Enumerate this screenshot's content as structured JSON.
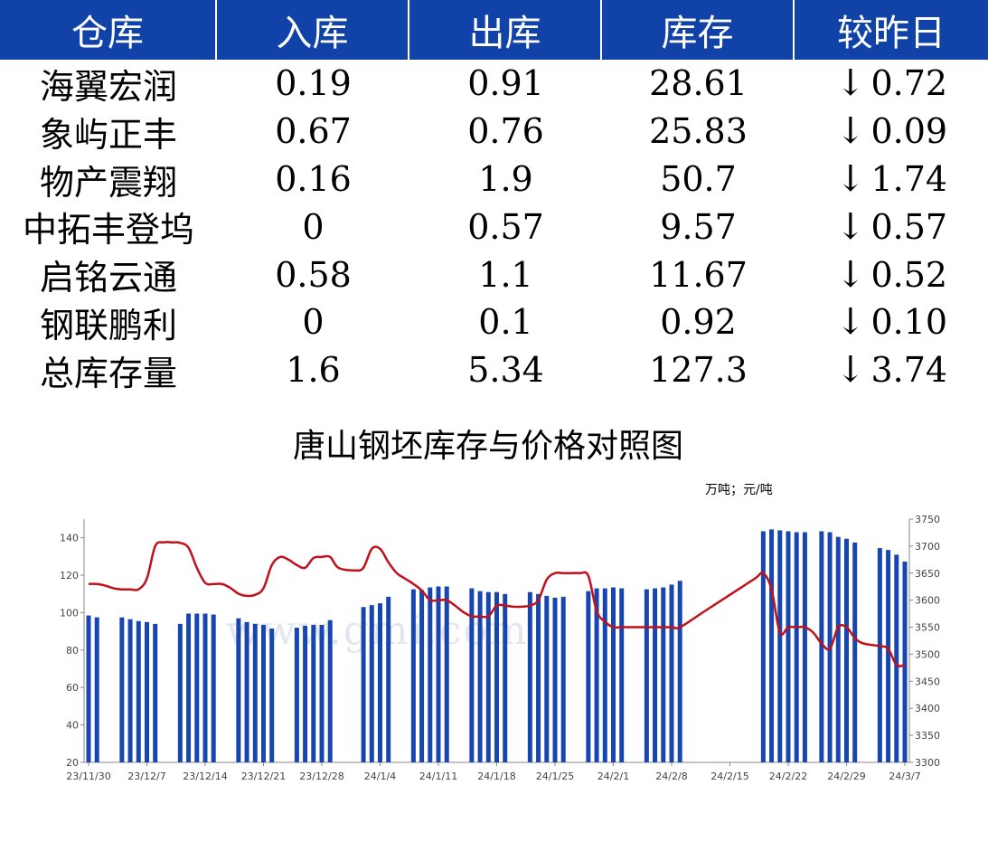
{
  "table": {
    "headers": [
      "仓库",
      "入库",
      "出库",
      "库存",
      "较昨日"
    ],
    "rows": [
      {
        "name": "海翼宏润",
        "in": "0.19",
        "out": "0.91",
        "stock": "28.61",
        "arrow": "↓",
        "change": "0.72"
      },
      {
        "name": "象屿正丰",
        "in": "0.67",
        "out": "0.76",
        "stock": "25.83",
        "arrow": "↓",
        "change": "0.09"
      },
      {
        "name": "物产震翔",
        "in": "0.16",
        "out": "1.9",
        "stock": "50.7",
        "arrow": "↓",
        "change": "1.74"
      },
      {
        "name": "中拓丰登坞",
        "in": "0",
        "out": "0.57",
        "stock": "9.57",
        "arrow": "↓",
        "change": "0.57"
      },
      {
        "name": "启铭云通",
        "in": "0.58",
        "out": "1.1",
        "stock": "11.67",
        "arrow": "↓",
        "change": "0.52"
      },
      {
        "name": "钢联鹏利",
        "in": "0",
        "out": "0.1",
        "stock": "0.92",
        "arrow": "↓",
        "change": "0.10"
      },
      {
        "name": "总库存量",
        "in": "1.6",
        "out": "5.34",
        "stock": "127.3",
        "arrow": "↓",
        "change": "3.74"
      }
    ]
  },
  "colors": {
    "header_bg": "#1142a8",
    "bar": "#1846b0",
    "line": "#c0111a",
    "change_green": "#1aa64a"
  },
  "watermark": "www.gmi.com",
  "chart_data": {
    "type": "bar+line",
    "title": "唐山钢坯库存与价格对照图",
    "unit_note": "万吨；元/吨",
    "x_range": [
      "2023-11-30",
      "2024-03-07"
    ],
    "x_tick_labels": [
      "23/11/30",
      "23/12/7",
      "23/12/14",
      "23/12/21",
      "23/12/28",
      "24/1/4",
      "24/1/11",
      "24/1/18",
      "24/1/25",
      "24/2/1",
      "24/2/8",
      "24/2/15",
      "24/2/22",
      "24/2/29",
      "24/3/7"
    ],
    "y_left": {
      "ticks": [
        20,
        40,
        60,
        80,
        100,
        120,
        140
      ],
      "range": [
        20,
        150
      ]
    },
    "y_right": {
      "ticks": [
        3300,
        3350,
        3400,
        3450,
        3500,
        3550,
        3600,
        3650,
        3700,
        3750
      ],
      "range": [
        3300,
        3750
      ]
    },
    "legend": "none",
    "grid": false,
    "series": [
      {
        "type": "bar",
        "axis": "left",
        "points": [
          [
            "2023-11-30",
            98.5
          ],
          [
            "2023-12-01",
            97.5
          ],
          [
            "2023-12-04",
            97.5
          ],
          [
            "2023-12-05",
            96.5
          ],
          [
            "2023-12-06",
            95.5
          ],
          [
            "2023-12-07",
            95
          ],
          [
            "2023-12-08",
            94
          ],
          [
            "2023-12-11",
            94
          ],
          [
            "2023-12-12",
            99.5
          ],
          [
            "2023-12-13",
            99.5
          ],
          [
            "2023-12-14",
            99.5
          ],
          [
            "2023-12-15",
            99
          ],
          [
            "2023-12-18",
            97
          ],
          [
            "2023-12-19",
            95
          ],
          [
            "2023-12-20",
            94
          ],
          [
            "2023-12-21",
            93.5
          ],
          [
            "2023-12-22",
            91.5
          ],
          [
            "2023-12-25",
            92
          ],
          [
            "2023-12-26",
            93
          ],
          [
            "2023-12-27",
            93.5
          ],
          [
            "2023-12-28",
            93.5
          ],
          [
            "2023-12-29",
            96
          ],
          [
            "2024-01-02",
            103
          ],
          [
            "2024-01-03",
            104
          ],
          [
            "2024-01-04",
            105
          ],
          [
            "2024-01-05",
            108.5
          ],
          [
            "2024-01-08",
            112.5
          ],
          [
            "2024-01-09",
            112
          ],
          [
            "2024-01-10",
            113.5
          ],
          [
            "2024-01-11",
            114
          ],
          [
            "2024-01-12",
            114
          ],
          [
            "2024-01-15",
            113
          ],
          [
            "2024-01-16",
            111.5
          ],
          [
            "2024-01-17",
            111
          ],
          [
            "2024-01-18",
            111
          ],
          [
            "2024-01-19",
            110
          ],
          [
            "2024-01-22",
            111
          ],
          [
            "2024-01-23",
            110
          ],
          [
            "2024-01-24",
            109
          ],
          [
            "2024-01-25",
            108
          ],
          [
            "2024-01-26",
            108.5
          ],
          [
            "2024-01-29",
            111.5
          ],
          [
            "2024-01-30",
            113
          ],
          [
            "2024-01-31",
            113
          ],
          [
            "2024-02-01",
            113.5
          ],
          [
            "2024-02-02",
            113
          ],
          [
            "2024-02-05",
            112.5
          ],
          [
            "2024-02-06",
            113
          ],
          [
            "2024-02-07",
            113.5
          ],
          [
            "2024-02-08",
            115
          ],
          [
            "2024-02-09",
            117
          ],
          [
            "2024-02-19",
            143.5
          ],
          [
            "2024-02-20",
            144.5
          ],
          [
            "2024-02-21",
            144
          ],
          [
            "2024-02-22",
            143.5
          ],
          [
            "2024-02-23",
            143
          ],
          [
            "2024-02-24",
            143
          ],
          [
            "2024-02-26",
            143.5
          ],
          [
            "2024-02-27",
            143
          ],
          [
            "2024-02-28",
            140.5
          ],
          [
            "2024-02-29",
            139.5
          ],
          [
            "2024-03-01",
            137.5
          ],
          [
            "2024-03-04",
            134.5
          ],
          [
            "2024-03-05",
            133.5
          ],
          [
            "2024-03-06",
            131
          ],
          [
            "2024-03-07",
            127.3
          ]
        ]
      },
      {
        "type": "line",
        "axis": "right",
        "points": [
          [
            "2023-11-30",
            3630
          ],
          [
            "2023-12-01",
            3630
          ],
          [
            "2023-12-02",
            3627
          ],
          [
            "2023-12-03",
            3622
          ],
          [
            "2023-12-04",
            3620
          ],
          [
            "2023-12-05",
            3620
          ],
          [
            "2023-12-06",
            3620
          ],
          [
            "2023-12-07",
            3640
          ],
          [
            "2023-12-08",
            3700
          ],
          [
            "2023-12-09",
            3707
          ],
          [
            "2023-12-10",
            3707
          ],
          [
            "2023-12-11",
            3706
          ],
          [
            "2023-12-12",
            3697
          ],
          [
            "2023-12-13",
            3660
          ],
          [
            "2023-12-14",
            3632
          ],
          [
            "2023-12-15",
            3630
          ],
          [
            "2023-12-16",
            3630
          ],
          [
            "2023-12-17",
            3623
          ],
          [
            "2023-12-18",
            3612
          ],
          [
            "2023-12-19",
            3608
          ],
          [
            "2023-12-20",
            3610
          ],
          [
            "2023-12-21",
            3622
          ],
          [
            "2023-12-22",
            3665
          ],
          [
            "2023-12-23",
            3680
          ],
          [
            "2023-12-24",
            3675
          ],
          [
            "2023-12-25",
            3665
          ],
          [
            "2023-12-26",
            3660
          ],
          [
            "2023-12-27",
            3678
          ],
          [
            "2023-12-28",
            3680
          ],
          [
            "2023-12-29",
            3680
          ],
          [
            "2023-12-30",
            3660
          ],
          [
            "2024-01-01",
            3655
          ],
          [
            "2024-01-02",
            3660
          ],
          [
            "2024-01-03",
            3695
          ],
          [
            "2024-01-04",
            3695
          ],
          [
            "2024-01-05",
            3670
          ],
          [
            "2024-01-06",
            3650
          ],
          [
            "2024-01-07",
            3640
          ],
          [
            "2024-01-08",
            3630
          ],
          [
            "2024-01-09",
            3618
          ],
          [
            "2024-01-10",
            3600
          ],
          [
            "2024-01-11",
            3600
          ],
          [
            "2024-01-12",
            3600
          ],
          [
            "2024-01-13",
            3590
          ],
          [
            "2024-01-14",
            3578
          ],
          [
            "2024-01-15",
            3570
          ],
          [
            "2024-01-16",
            3570
          ],
          [
            "2024-01-17",
            3570
          ],
          [
            "2024-01-18",
            3590
          ],
          [
            "2024-01-19",
            3590
          ],
          [
            "2024-01-20",
            3588
          ],
          [
            "2024-01-21",
            3588
          ],
          [
            "2024-01-22",
            3590
          ],
          [
            "2024-01-23",
            3600
          ],
          [
            "2024-01-24",
            3638
          ],
          [
            "2024-01-25",
            3650
          ],
          [
            "2024-01-26",
            3650
          ],
          [
            "2024-01-27",
            3650
          ],
          [
            "2024-01-28",
            3650
          ],
          [
            "2024-01-29",
            3645
          ],
          [
            "2024-01-30",
            3580
          ],
          [
            "2024-01-31",
            3560
          ],
          [
            "2024-02-01",
            3550
          ],
          [
            "2024-02-02",
            3550
          ],
          [
            "2024-02-05",
            3550
          ],
          [
            "2024-02-08",
            3550
          ],
          [
            "2024-02-09",
            3550
          ],
          [
            "2024-02-12",
            3580
          ],
          [
            "2024-02-15",
            3610
          ],
          [
            "2024-02-18",
            3640
          ],
          [
            "2024-02-19",
            3650
          ],
          [
            "2024-02-20",
            3620
          ],
          [
            "2024-02-21",
            3540
          ],
          [
            "2024-02-22",
            3550
          ],
          [
            "2024-02-23",
            3550
          ],
          [
            "2024-02-24",
            3550
          ],
          [
            "2024-02-25",
            3540
          ],
          [
            "2024-02-26",
            3520
          ],
          [
            "2024-02-27",
            3510
          ],
          [
            "2024-02-28",
            3550
          ],
          [
            "2024-02-29",
            3550
          ],
          [
            "2024-03-01",
            3530
          ],
          [
            "2024-03-02",
            3520
          ],
          [
            "2024-03-04",
            3515
          ],
          [
            "2024-03-05",
            3510
          ],
          [
            "2024-03-06",
            3480
          ],
          [
            "2024-03-07",
            3480
          ]
        ]
      }
    ]
  }
}
